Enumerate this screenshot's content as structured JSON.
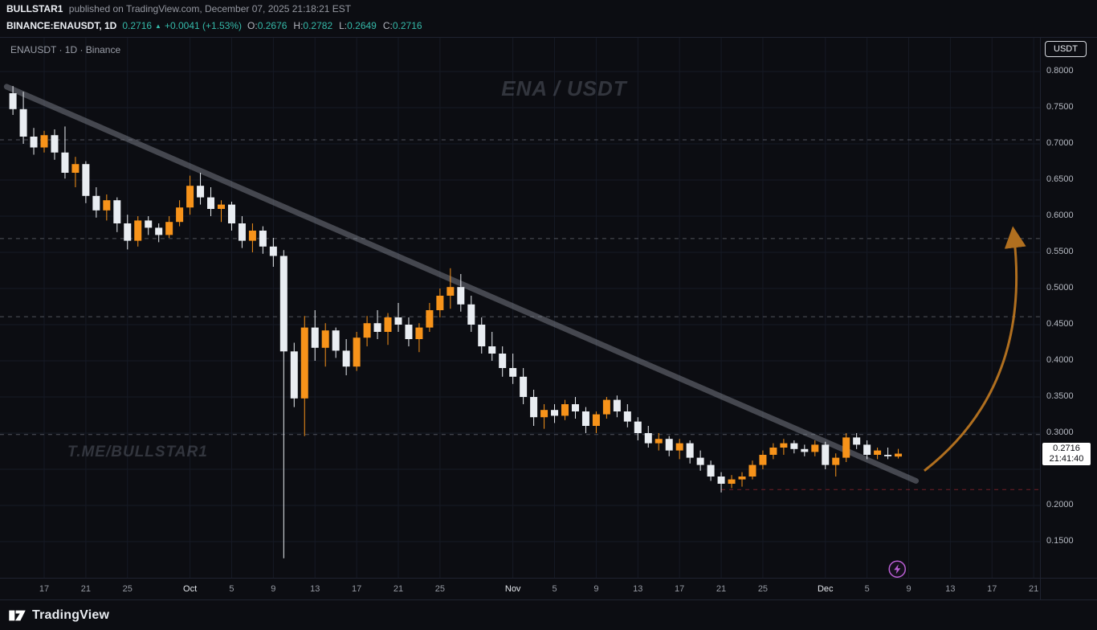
{
  "header": {
    "author": "BULLSTAR1",
    "publish_info": "published on TradingView.com, December 07, 2025 21:18:21 EST",
    "symbol": "BINANCE:ENAUSDT, 1D",
    "last_price": "0.2716",
    "change_arrow": "▲",
    "change": "+0.0041 (+1.53%)",
    "ohlc": [
      {
        "k": "O:",
        "v": "0.2676"
      },
      {
        "k": "H:",
        "v": "0.2782"
      },
      {
        "k": "L:",
        "v": "0.2649"
      },
      {
        "k": "C:",
        "v": "0.2716"
      }
    ]
  },
  "chart": {
    "legend": "ENAUSDT · 1D · Binance",
    "currency_button": "USDT",
    "watermark_center": "ENA / USDT",
    "watermark_left": "T.ME/BULLSTAR1",
    "price_label": {
      "price": "0.2716",
      "countdown": "21:41:40"
    }
  },
  "footer": {
    "logo_text": "TradingView"
  },
  "colors": {
    "background": "#0c0d12",
    "up": "#f7931a",
    "down": "#e9edf2",
    "teal_text": "#35b9a9",
    "grid": "#161a25",
    "axis_text": "#b6bac3"
  },
  "chart_data": {
    "type": "candlestick",
    "title": "ENA / USDT",
    "symbol": "ENAUSDT",
    "exchange": "Binance",
    "interval": "1D",
    "start_date": "2025-09-14",
    "last_price": 0.2716,
    "ylim": [
      0.099,
      0.847
    ],
    "up_color": "#f7931a",
    "down_color": "#e9edf2",
    "y_labels": [
      {
        "text": "0.8000",
        "price": 0.8
      },
      {
        "text": "0.7500",
        "price": 0.75
      },
      {
        "text": "0.7000",
        "price": 0.7
      },
      {
        "text": "0.6500",
        "price": 0.65
      },
      {
        "text": "0.6000",
        "price": 0.6
      },
      {
        "text": "0.5500",
        "price": 0.55
      },
      {
        "text": "0.5000",
        "price": 0.5
      },
      {
        "text": "0.4500",
        "price": 0.45
      },
      {
        "text": "0.4000",
        "price": 0.4
      },
      {
        "text": "0.3500",
        "price": 0.35
      },
      {
        "text": "0.3000",
        "price": 0.3
      },
      {
        "text": "0.2000",
        "price": 0.2
      },
      {
        "text": "0.1500",
        "price": 0.15
      }
    ],
    "x_ticks": [
      {
        "label": "17",
        "day": 3
      },
      {
        "label": "21",
        "day": 7
      },
      {
        "label": "25",
        "day": 11
      },
      {
        "label": "Oct",
        "day": 17,
        "major": true
      },
      {
        "label": "5",
        "day": 21
      },
      {
        "label": "9",
        "day": 25
      },
      {
        "label": "13",
        "day": 29
      },
      {
        "label": "17",
        "day": 33
      },
      {
        "label": "21",
        "day": 37
      },
      {
        "label": "25",
        "day": 41
      },
      {
        "label": "Nov",
        "day": 48,
        "major": true
      },
      {
        "label": "5",
        "day": 52
      },
      {
        "label": "9",
        "day": 56
      },
      {
        "label": "13",
        "day": 60
      },
      {
        "label": "17",
        "day": 64
      },
      {
        "label": "21",
        "day": 68
      },
      {
        "label": "25",
        "day": 72
      },
      {
        "label": "Dec",
        "day": 78,
        "major": true
      },
      {
        "label": "5",
        "day": 82
      },
      {
        "label": "9",
        "day": 86
      },
      {
        "label": "13",
        "day": 90
      },
      {
        "label": "17",
        "day": 94
      },
      {
        "label": "21",
        "day": 98
      }
    ],
    "candles": [
      [
        0.77,
        0.78,
        0.74,
        0.748
      ],
      [
        0.748,
        0.772,
        0.7,
        0.71
      ],
      [
        0.71,
        0.722,
        0.685,
        0.695
      ],
      [
        0.695,
        0.718,
        0.688,
        0.712
      ],
      [
        0.712,
        0.72,
        0.678,
        0.688
      ],
      [
        0.688,
        0.724,
        0.652,
        0.66
      ],
      [
        0.66,
        0.682,
        0.64,
        0.672
      ],
      [
        0.672,
        0.676,
        0.618,
        0.628
      ],
      [
        0.628,
        0.64,
        0.598,
        0.608
      ],
      [
        0.608,
        0.63,
        0.594,
        0.622
      ],
      [
        0.622,
        0.626,
        0.578,
        0.59
      ],
      [
        0.59,
        0.602,
        0.554,
        0.566
      ],
      [
        0.566,
        0.6,
        0.558,
        0.594
      ],
      [
        0.594,
        0.6,
        0.574,
        0.584
      ],
      [
        0.584,
        0.59,
        0.564,
        0.574
      ],
      [
        0.574,
        0.6,
        0.57,
        0.592
      ],
      [
        0.592,
        0.622,
        0.586,
        0.612
      ],
      [
        0.612,
        0.656,
        0.602,
        0.642
      ],
      [
        0.642,
        0.66,
        0.616,
        0.626
      ],
      [
        0.626,
        0.64,
        0.6,
        0.61
      ],
      [
        0.61,
        0.622,
        0.592,
        0.616
      ],
      [
        0.616,
        0.62,
        0.58,
        0.59
      ],
      [
        0.59,
        0.6,
        0.556,
        0.566
      ],
      [
        0.566,
        0.59,
        0.55,
        0.58
      ],
      [
        0.58,
        0.586,
        0.548,
        0.558
      ],
      [
        0.558,
        0.57,
        0.53,
        0.545
      ],
      [
        0.545,
        0.553,
        0.127,
        0.413
      ],
      [
        0.413,
        0.425,
        0.336,
        0.348
      ],
      [
        0.348,
        0.462,
        0.296,
        0.446
      ],
      [
        0.446,
        0.47,
        0.4,
        0.418
      ],
      [
        0.418,
        0.452,
        0.392,
        0.442
      ],
      [
        0.442,
        0.446,
        0.404,
        0.414
      ],
      [
        0.414,
        0.43,
        0.38,
        0.392
      ],
      [
        0.392,
        0.44,
        0.386,
        0.432
      ],
      [
        0.432,
        0.462,
        0.42,
        0.452
      ],
      [
        0.452,
        0.47,
        0.43,
        0.44
      ],
      [
        0.44,
        0.466,
        0.422,
        0.46
      ],
      [
        0.46,
        0.48,
        0.44,
        0.45
      ],
      [
        0.45,
        0.46,
        0.42,
        0.43
      ],
      [
        0.43,
        0.452,
        0.412,
        0.446
      ],
      [
        0.446,
        0.48,
        0.44,
        0.47
      ],
      [
        0.47,
        0.5,
        0.46,
        0.49
      ],
      [
        0.49,
        0.528,
        0.472,
        0.502
      ],
      [
        0.502,
        0.52,
        0.468,
        0.478
      ],
      [
        0.478,
        0.49,
        0.44,
        0.45
      ],
      [
        0.45,
        0.46,
        0.41,
        0.42
      ],
      [
        0.42,
        0.44,
        0.4,
        0.41
      ],
      [
        0.41,
        0.42,
        0.378,
        0.39
      ],
      [
        0.39,
        0.41,
        0.368,
        0.378
      ],
      [
        0.378,
        0.39,
        0.34,
        0.35
      ],
      [
        0.35,
        0.36,
        0.31,
        0.322
      ],
      [
        0.322,
        0.34,
        0.306,
        0.332
      ],
      [
        0.332,
        0.34,
        0.314,
        0.324
      ],
      [
        0.324,
        0.346,
        0.318,
        0.34
      ],
      [
        0.34,
        0.35,
        0.32,
        0.33
      ],
      [
        0.33,
        0.336,
        0.3,
        0.31
      ],
      [
        0.31,
        0.33,
        0.3,
        0.326
      ],
      [
        0.326,
        0.35,
        0.32,
        0.346
      ],
      [
        0.346,
        0.352,
        0.322,
        0.33
      ],
      [
        0.33,
        0.34,
        0.308,
        0.316
      ],
      [
        0.316,
        0.322,
        0.29,
        0.3
      ],
      [
        0.3,
        0.31,
        0.28,
        0.286
      ],
      [
        0.286,
        0.3,
        0.276,
        0.292
      ],
      [
        0.292,
        0.296,
        0.268,
        0.276
      ],
      [
        0.276,
        0.292,
        0.264,
        0.286
      ],
      [
        0.286,
        0.29,
        0.258,
        0.266
      ],
      [
        0.266,
        0.276,
        0.248,
        0.256
      ],
      [
        0.256,
        0.262,
        0.234,
        0.24
      ],
      [
        0.24,
        0.246,
        0.218,
        0.23
      ],
      [
        0.23,
        0.242,
        0.224,
        0.236
      ],
      [
        0.236,
        0.246,
        0.226,
        0.24
      ],
      [
        0.24,
        0.262,
        0.236,
        0.256
      ],
      [
        0.256,
        0.276,
        0.25,
        0.27
      ],
      [
        0.27,
        0.286,
        0.264,
        0.28
      ],
      [
        0.28,
        0.292,
        0.27,
        0.286
      ],
      [
        0.286,
        0.29,
        0.272,
        0.278
      ],
      [
        0.278,
        0.284,
        0.268,
        0.274
      ],
      [
        0.274,
        0.29,
        0.268,
        0.284
      ],
      [
        0.284,
        0.288,
        0.25,
        0.256
      ],
      [
        0.256,
        0.272,
        0.24,
        0.266
      ],
      [
        0.266,
        0.3,
        0.26,
        0.294
      ],
      [
        0.294,
        0.3,
        0.278,
        0.284
      ],
      [
        0.284,
        0.29,
        0.264,
        0.27
      ],
      [
        0.27,
        0.28,
        0.264,
        0.276
      ],
      [
        0.27,
        0.28,
        0.264,
        0.268
      ],
      [
        0.2676,
        0.2782,
        0.2649,
        0.2716
      ]
    ],
    "levels": [
      {
        "price": 0.7055,
        "color": "rgba(150,156,168,0.5)",
        "from_day": -1.25,
        "to_day": 98.6
      },
      {
        "price": 0.569,
        "color": "rgba(150,156,168,0.5)",
        "from_day": -1.25,
        "to_day": 98.6
      },
      {
        "price": 0.461,
        "color": "rgba(150,156,168,0.5)",
        "from_day": -1.25,
        "to_day": 98.6
      },
      {
        "price": 0.298,
        "color": "rgba(150,156,168,0.5)",
        "from_day": -1.25,
        "to_day": 98.6
      },
      {
        "price": 0.222,
        "color": "rgba(242,54,69,0.45)",
        "from_day": 68,
        "to_day": 98.6
      }
    ],
    "trendline": {
      "from": {
        "day": -0.6,
        "price": 0.779
      },
      "to": {
        "day": 86.7,
        "price": 0.234
      },
      "color": "#8a8f99",
      "opacity": 0.45,
      "width": 7
    },
    "arrow": {
      "start": {
        "day": 87.5,
        "price": 0.248
      },
      "ctrl": {
        "day": 97.8,
        "price": 0.364
      },
      "end": {
        "day": 96.1,
        "price": 0.573
      },
      "color": "#b06f1f",
      "width": 3
    },
    "event_marker": {
      "day": 84.9,
      "price": 0.112,
      "color": "#bb5fd6"
    }
  }
}
